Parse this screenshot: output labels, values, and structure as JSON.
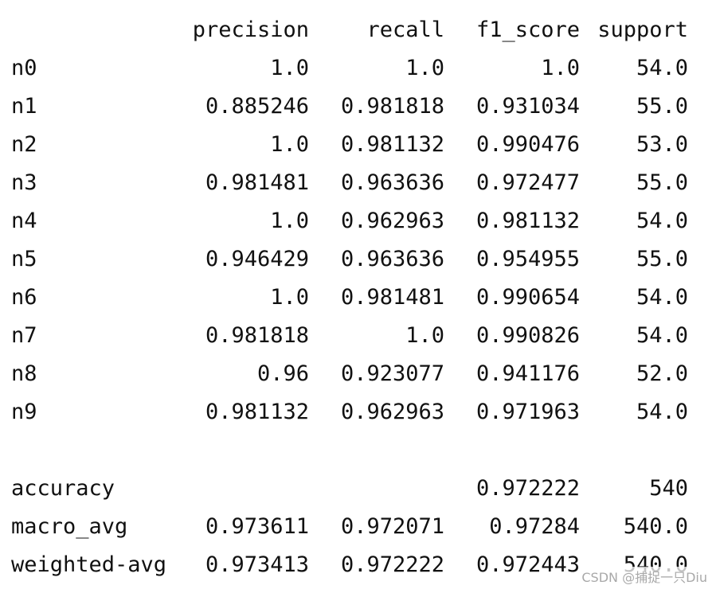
{
  "headers": {
    "precision": "precision",
    "recall": "recall",
    "f1_score": "f1_score",
    "support": "support"
  },
  "rows": [
    {
      "label": "n0",
      "precision": "1.0",
      "recall": "1.0",
      "f1_score": "1.0",
      "support": "54.0"
    },
    {
      "label": "n1",
      "precision": "0.885246",
      "recall": "0.981818",
      "f1_score": "0.931034",
      "support": "55.0"
    },
    {
      "label": "n2",
      "precision": "1.0",
      "recall": "0.981132",
      "f1_score": "0.990476",
      "support": "53.0"
    },
    {
      "label": "n3",
      "precision": "0.981481",
      "recall": "0.963636",
      "f1_score": "0.972477",
      "support": "55.0"
    },
    {
      "label": "n4",
      "precision": "1.0",
      "recall": "0.962963",
      "f1_score": "0.981132",
      "support": "54.0"
    },
    {
      "label": "n5",
      "precision": "0.946429",
      "recall": "0.963636",
      "f1_score": "0.954955",
      "support": "55.0"
    },
    {
      "label": "n6",
      "precision": "1.0",
      "recall": "0.981481",
      "f1_score": "0.990654",
      "support": "54.0"
    },
    {
      "label": "n7",
      "precision": "0.981818",
      "recall": "1.0",
      "f1_score": "0.990826",
      "support": "54.0"
    },
    {
      "label": "n8",
      "precision": "0.96",
      "recall": "0.923077",
      "f1_score": "0.941176",
      "support": "52.0"
    },
    {
      "label": "n9",
      "precision": "0.981132",
      "recall": "0.962963",
      "f1_score": "0.971963",
      "support": "54.0"
    }
  ],
  "summary": [
    {
      "label": "accuracy",
      "precision": "",
      "recall": "",
      "f1_score": "0.972222",
      "support": "540"
    },
    {
      "label": "macro_avg",
      "precision": "0.973611",
      "recall": "0.972071",
      "f1_score": "0.97284",
      "support": "540.0"
    },
    {
      "label": "weighted-avg",
      "precision": "0.973413",
      "recall": "0.972222",
      "f1_score": "0.972443",
      "support": "540.0"
    }
  ],
  "watermark": "CSDN @捕捉一只Diu"
}
